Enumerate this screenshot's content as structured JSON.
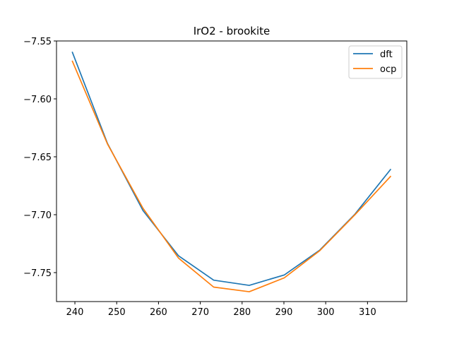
{
  "chart_data": {
    "type": "line",
    "title": "IrO2 - brookite",
    "xlabel": "",
    "ylabel": "",
    "xlim": [
      235.6,
      319.4
    ],
    "ylim": [
      -7.775,
      -7.55
    ],
    "xticks": [
      240,
      250,
      260,
      270,
      280,
      290,
      300,
      310
    ],
    "yticks": [
      -7.55,
      -7.6,
      -7.65,
      -7.7,
      -7.75
    ],
    "xtick_labels": [
      "240",
      "250",
      "260",
      "270",
      "280",
      "290",
      "300",
      "310"
    ],
    "ytick_labels": [
      "−7.55",
      "−7.60",
      "−7.65",
      "−7.70",
      "−7.75"
    ],
    "grid": false,
    "legend_position": "top-right",
    "x": [
      239.4,
      247.8,
      256.3,
      264.8,
      273.2,
      281.7,
      290.1,
      298.6,
      307.0,
      315.5
    ],
    "series": [
      {
        "name": "dft",
        "color": "#1f77b4",
        "values": [
          -7.5598,
          -7.6385,
          -7.6965,
          -7.7355,
          -7.7565,
          -7.761,
          -7.752,
          -7.7305,
          -7.6995,
          -7.661
        ]
      },
      {
        "name": "ocp",
        "color": "#ff7f0e",
        "values": [
          -7.5675,
          -7.639,
          -7.6945,
          -7.7375,
          -7.7625,
          -7.7665,
          -7.7545,
          -7.731,
          -7.7,
          -7.667
        ]
      }
    ]
  }
}
